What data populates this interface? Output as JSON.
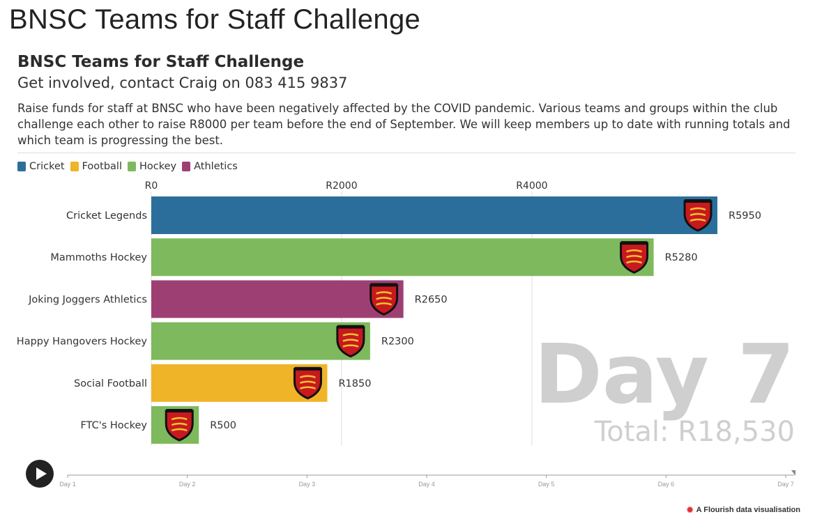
{
  "page": {
    "title": "BNSC Teams for Staff Challenge"
  },
  "header": {
    "title": "BNSC Teams for Staff Challenge",
    "subtitle": "Get involved, contact Craig on 083 415 9837",
    "description": "Raise funds for staff at BNSC who have been negatively affected by the COVID pandemic. Various teams and groups within the club challenge each other to raise R8000 per team before the end of September. We will keep members up to date with running totals and which team is progressing the best."
  },
  "legend": [
    {
      "label": "Cricket",
      "color": "#2c6e9b"
    },
    {
      "label": "Football",
      "color": "#f0b429"
    },
    {
      "label": "Hockey",
      "color": "#7fb95e"
    },
    {
      "label": "Athletics",
      "color": "#9e3f74"
    }
  ],
  "chart_data": {
    "type": "bar",
    "orientation": "horizontal",
    "categories": [
      "Cricket Legends",
      "Mammoths Hockey",
      "Joking Joggers Athletics",
      "Happy Hangovers Hockey",
      "Social Football",
      "FTC's Hockey"
    ],
    "values": [
      5950,
      5280,
      2650,
      2300,
      1850,
      500
    ],
    "value_labels": [
      "R5950",
      "R5280",
      "R2650",
      "R2300",
      "R1850",
      "R500"
    ],
    "groups": [
      "Cricket",
      "Hockey",
      "Athletics",
      "Hockey",
      "Football",
      "Hockey"
    ],
    "x_ticks": [
      0,
      2000,
      4000
    ],
    "x_tick_labels": [
      "R0",
      "R2000",
      "R4000"
    ],
    "xlim": [
      0,
      6500
    ],
    "grid": true,
    "legend_position": "top-left",
    "current_frame": "Day 7",
    "total_label": "Total: R18,530"
  },
  "timeline": {
    "labels": [
      "Day 1",
      "Day 2",
      "Day 3",
      "Day 4",
      "Day 5",
      "Day 6",
      "Day 7"
    ],
    "current": "Day 7"
  },
  "footer": {
    "credit": "A Flourish data visualisation"
  }
}
